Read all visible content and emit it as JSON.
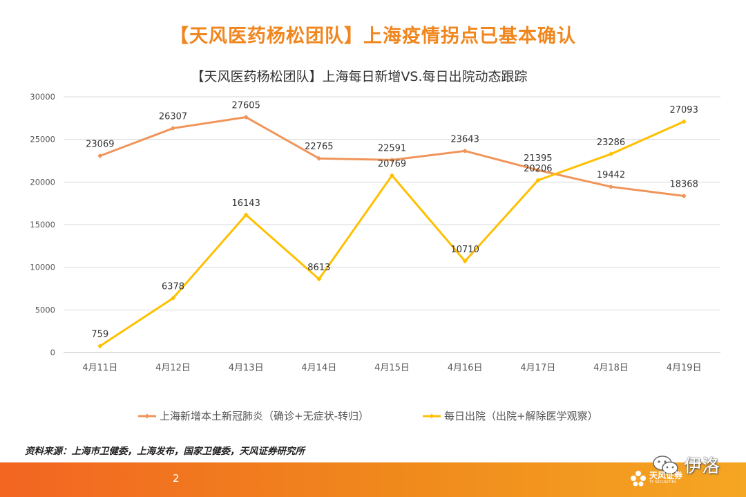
{
  "slide": {
    "title": "【天风医药杨松团队】上海疫情拐点已基本确认",
    "source": "资料来源：上海市卫健委，上海发布，国家卫健委，天风证券研究所",
    "page_number": "2"
  },
  "watermark": {
    "text": "伊洛",
    "icon": "wechat-icon"
  },
  "brand": {
    "name_cn": "天风证券",
    "name_en": "TF SECURITIES",
    "icon": "flower-logo-icon"
  },
  "colors": {
    "title_orange": "#f0861d",
    "series_new_cases": "#f0955a",
    "series_discharged": "#ffc000",
    "footer": "#f26522"
  },
  "chart_data": {
    "type": "line",
    "title": "【天风医药杨松团队】上海每日新增VS.每日出院动态跟踪",
    "categories": [
      "4月11日",
      "4月12日",
      "4月13日",
      "4月14日",
      "4月15日",
      "4月16日",
      "4月17日",
      "4月18日",
      "4月19日"
    ],
    "ylim": [
      0,
      30000
    ],
    "yticks": [
      0,
      5000,
      10000,
      15000,
      20000,
      25000,
      30000
    ],
    "grid": true,
    "legend_position": "bottom",
    "series": [
      {
        "name": "上海新增本土新冠肺炎（确诊+无症状-转归）",
        "color": "#f0955a",
        "values": [
          23069,
          26307,
          27605,
          22765,
          22591,
          23643,
          21395,
          19442,
          18368
        ]
      },
      {
        "name": "每日出院（出院+解除医学观察）",
        "color": "#ffc000",
        "values": [
          759,
          6378,
          16143,
          8613,
          20769,
          10710,
          20206,
          23286,
          27093
        ]
      }
    ]
  }
}
